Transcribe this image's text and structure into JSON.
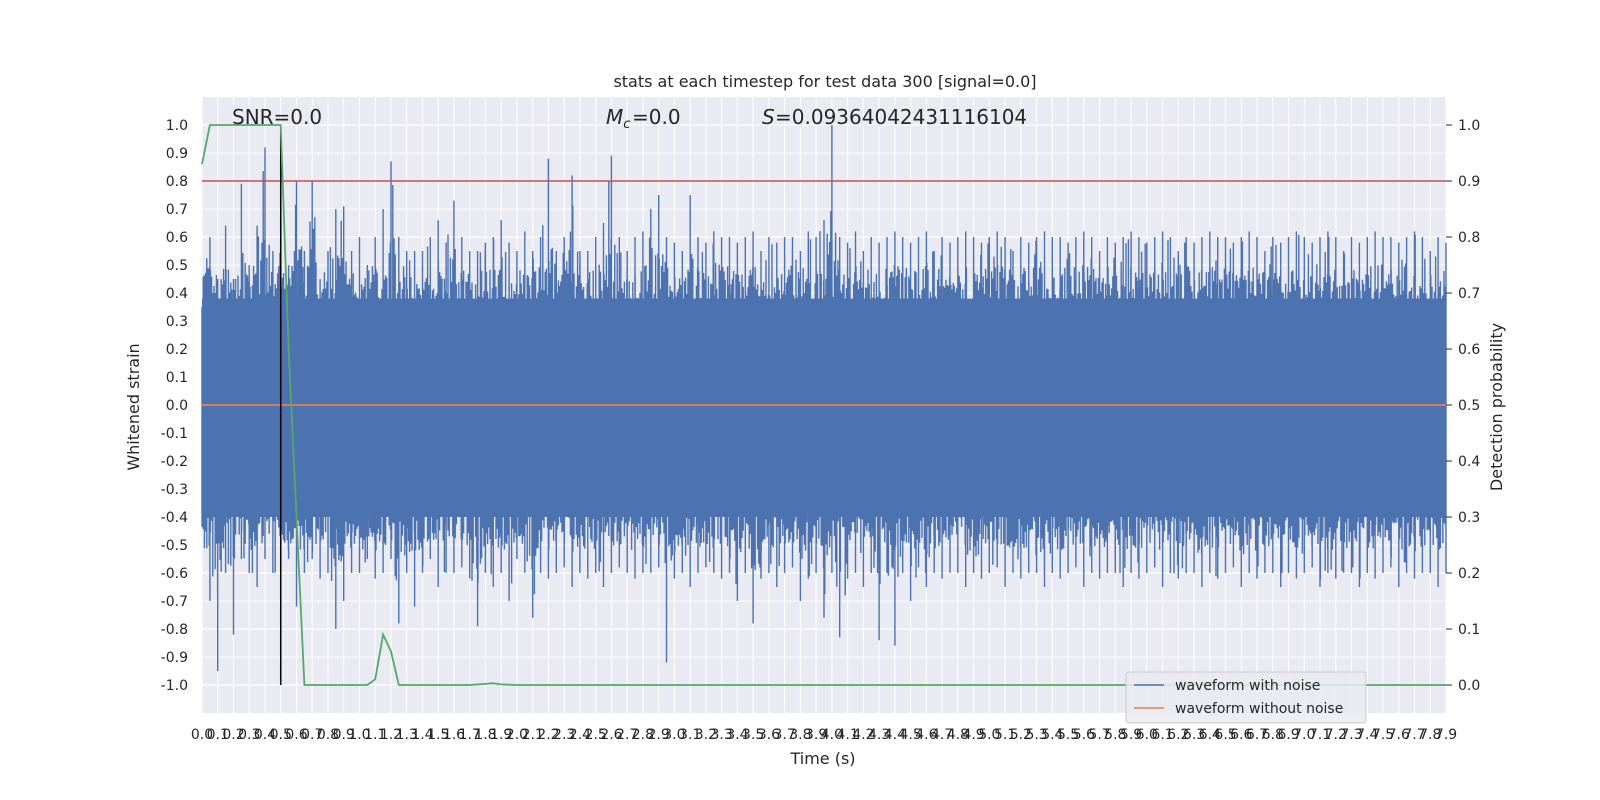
{
  "chart_data": {
    "type": "line",
    "title": "stats at each timestep for test data 300 [signal=0.0]",
    "xlabel": "Time (s)",
    "ylabel": "Whitened strain",
    "ylabel_right": "Detection probability",
    "xlim": [
      0.0,
      7.9
    ],
    "ylim": [
      -1.1,
      1.1
    ],
    "ylim_right": [
      -0.05,
      1.05
    ],
    "grid": true,
    "x_ticks": [
      "0.0",
      "0.1",
      "0.2",
      "0.3",
      "0.4",
      "0.5",
      "0.6",
      "0.7",
      "0.8",
      "0.9",
      "1.0",
      "1.1",
      "1.2",
      "1.3",
      "1.4",
      "1.5",
      "1.6",
      "1.7",
      "1.8",
      "1.9",
      "2.0",
      "2.1",
      "2.2",
      "2.3",
      "2.4",
      "2.5",
      "2.6",
      "2.7",
      "2.8",
      "2.9",
      "3.0",
      "3.1",
      "3.2",
      "3.3",
      "3.4",
      "3.5",
      "3.6",
      "3.7",
      "3.8",
      "3.9",
      "4.0",
      "4.1",
      "4.2",
      "4.3",
      "4.4",
      "4.5",
      "4.6",
      "4.7",
      "4.8",
      "4.9",
      "5.0",
      "5.1",
      "5.2",
      "5.3",
      "5.4",
      "5.5",
      "5.6",
      "5.7",
      "5.8",
      "5.9",
      "6.0",
      "6.1",
      "6.2",
      "6.3",
      "6.4",
      "6.5",
      "6.6",
      "6.7",
      "6.8",
      "6.9",
      "7.0",
      "7.1",
      "7.2",
      "7.3",
      "7.4",
      "7.5",
      "7.6",
      "7.7",
      "7.8",
      "7.9"
    ],
    "y_ticks": [
      "1.0",
      "0.9",
      "0.8",
      "0.7",
      "0.6",
      "0.5",
      "0.4",
      "0.3",
      "0.2",
      "0.1",
      "0.0",
      "-0.1",
      "-0.2",
      "-0.3",
      "-0.4",
      "-0.5",
      "-0.6",
      "-0.7",
      "-0.8",
      "-0.9",
      "-1.0"
    ],
    "y_ticks_right": [
      "1.0",
      "0.9",
      "0.8",
      "0.7",
      "0.6",
      "0.5",
      "0.4",
      "0.3",
      "0.2",
      "0.1",
      "0.0"
    ],
    "annotations": {
      "snr": "SNR=0.0",
      "mc": "=0.0",
      "s": "=0.09364042431116104"
    },
    "legend": {
      "placement": "lower-right",
      "entries": [
        "waveform with noise",
        "waveform without noise"
      ]
    },
    "colors": {
      "noise": "#4c72b0",
      "clean": "#dd8452",
      "probability": "#55a868",
      "threshold": "#c44e52",
      "marker": "#000000",
      "background": "#eaeaf2"
    },
    "threshold_right": 0.9,
    "marker_x": 0.5,
    "series": [
      {
        "name": "waveform with noise",
        "axis": "left",
        "x": [
          0.05,
          0.1,
          0.15,
          0.2,
          0.25,
          0.3,
          0.35,
          0.4,
          0.45,
          0.5,
          0.55,
          0.6,
          0.65,
          0.7,
          0.75,
          0.8,
          0.85,
          0.9,
          0.95,
          1.0,
          1.05,
          1.1,
          1.15,
          1.2,
          1.25,
          1.3,
          1.35,
          1.4,
          1.45,
          1.5,
          1.55,
          1.6,
          1.65,
          1.7,
          1.75,
          1.8,
          1.85,
          1.9,
          1.95,
          2.0,
          2.05,
          2.1,
          2.15,
          2.2,
          2.25,
          2.3,
          2.35,
          2.4,
          2.45,
          2.5,
          2.55,
          2.6,
          2.65,
          2.7,
          2.75,
          2.8,
          2.85,
          2.9,
          2.95,
          3.0,
          3.05,
          3.1,
          3.15,
          3.2,
          3.25,
          3.3,
          3.35,
          3.4,
          3.45,
          3.5,
          3.55,
          3.6,
          3.65,
          3.7,
          3.75,
          3.8,
          3.85,
          3.9,
          3.95,
          4.0,
          4.05,
          4.1,
          4.15,
          4.2,
          4.25,
          4.3,
          4.35,
          4.4,
          4.45,
          4.5,
          4.55,
          4.6,
          4.65,
          4.7,
          4.75,
          4.8,
          4.85,
          4.9,
          4.95,
          5.0,
          5.05,
          5.1,
          5.15,
          5.2,
          5.25,
          5.3,
          5.35,
          5.4,
          5.45,
          5.5,
          5.55,
          5.6,
          5.65,
          5.7,
          5.75,
          5.8,
          5.85,
          5.9,
          5.95,
          6.0,
          6.05,
          6.1,
          6.15,
          6.2,
          6.25,
          6.3,
          6.35,
          6.4,
          6.45,
          6.5,
          6.55,
          6.6,
          6.65,
          6.7,
          6.75,
          6.8,
          6.85,
          6.9,
          6.95,
          7.0,
          7.05,
          7.1,
          7.15,
          7.2,
          7.25,
          7.3,
          7.35,
          7.4,
          7.45,
          7.5,
          7.55,
          7.6,
          7.65,
          7.7,
          7.75,
          7.8,
          7.85,
          7.9
        ],
        "max": [
          0.6,
          0.45,
          0.64,
          0.45,
          0.79,
          0.5,
          0.64,
          0.92,
          0.55,
          0.7,
          0.5,
          0.8,
          0.55,
          0.8,
          0.45,
          0.55,
          0.7,
          0.71,
          0.55,
          0.6,
          0.5,
          0.6,
          0.7,
          0.87,
          0.6,
          0.55,
          0.55,
          0.55,
          0.6,
          0.66,
          0.58,
          0.73,
          0.6,
          0.55,
          0.55,
          0.58,
          0.6,
          0.66,
          0.58,
          0.55,
          0.62,
          0.55,
          0.6,
          0.88,
          0.55,
          0.6,
          0.82,
          0.55,
          0.55,
          0.6,
          0.65,
          0.89,
          0.6,
          0.55,
          0.6,
          0.62,
          0.7,
          0.75,
          0.6,
          0.58,
          0.55,
          0.75,
          0.6,
          0.58,
          0.62,
          0.6,
          0.6,
          0.58,
          0.6,
          0.62,
          0.55,
          0.6,
          0.58,
          0.6,
          0.6,
          0.55,
          0.62,
          0.6,
          0.66,
          1.0,
          0.6,
          0.58,
          0.62,
          0.55,
          0.6,
          0.58,
          0.6,
          0.62,
          0.6,
          0.58,
          0.6,
          0.62,
          0.55,
          0.6,
          0.58,
          0.6,
          0.62,
          0.6,
          0.58,
          0.6,
          0.62,
          0.6,
          0.55,
          0.6,
          0.58,
          0.6,
          0.62,
          0.6,
          0.6,
          0.58,
          0.6,
          0.62,
          0.6,
          0.55,
          0.6,
          0.58,
          0.6,
          0.62,
          0.6,
          0.58,
          0.6,
          0.62,
          0.6,
          0.55,
          0.6,
          0.58,
          0.6,
          0.62,
          0.6,
          0.6,
          0.58,
          0.6,
          0.62,
          0.6,
          0.55,
          0.6,
          0.58,
          0.6,
          0.62,
          0.6,
          0.58,
          0.6,
          0.62,
          0.6,
          0.55,
          0.6,
          0.58,
          0.6,
          0.62,
          0.6,
          0.6,
          0.58,
          0.6,
          0.62,
          0.6,
          0.55,
          0.6,
          0.58
        ],
        "min": [
          -0.7,
          -0.95,
          -0.6,
          -0.82,
          -0.55,
          -0.6,
          -0.65,
          -0.55,
          -0.6,
          -0.6,
          -0.55,
          -0.72,
          -0.6,
          -0.55,
          -0.62,
          -0.6,
          -0.8,
          -0.7,
          -0.6,
          -0.6,
          -0.55,
          -0.62,
          -0.6,
          -0.55,
          -0.78,
          -0.6,
          -0.72,
          -0.6,
          -0.55,
          -0.65,
          -0.6,
          -0.6,
          -0.58,
          -0.62,
          -0.79,
          -0.6,
          -0.65,
          -0.6,
          -0.7,
          -0.55,
          -0.6,
          -0.76,
          -0.6,
          -0.62,
          -0.6,
          -0.58,
          -0.65,
          -0.6,
          -0.62,
          -0.6,
          -0.65,
          -0.6,
          -0.58,
          -0.6,
          -0.62,
          -0.6,
          -0.6,
          -0.58,
          -0.92,
          -0.62,
          -0.6,
          -0.65,
          -0.6,
          -0.58,
          -0.6,
          -0.62,
          -0.6,
          -0.7,
          -0.6,
          -0.78,
          -0.62,
          -0.6,
          -0.65,
          -0.6,
          -0.58,
          -0.7,
          -0.62,
          -0.6,
          -0.76,
          -0.6,
          -0.83,
          -0.62,
          -0.6,
          -0.65,
          -0.6,
          -0.84,
          -0.6,
          -0.86,
          -0.6,
          -0.7,
          -0.58,
          -0.65,
          -0.6,
          -0.62,
          -0.6,
          -0.6,
          -0.65,
          -0.6,
          -0.62,
          -0.6,
          -0.58,
          -0.65,
          -0.6,
          -0.62,
          -0.6,
          -0.6,
          -0.65,
          -0.6,
          -0.62,
          -0.6,
          -0.58,
          -0.65,
          -0.6,
          -0.62,
          -0.6,
          -0.6,
          -0.65,
          -0.6,
          -0.62,
          -0.6,
          -0.58,
          -0.65,
          -0.6,
          -0.62,
          -0.6,
          -0.6,
          -0.65,
          -0.6,
          -0.62,
          -0.6,
          -0.58,
          -0.65,
          -0.6,
          -0.62,
          -0.6,
          -0.6,
          -0.65,
          -0.6,
          -0.62,
          -0.6,
          -0.58,
          -0.65,
          -0.6,
          -0.62,
          -0.6,
          -0.6,
          -0.65,
          -0.6,
          -0.62,
          -0.6,
          -0.58,
          -0.65,
          -0.6,
          -0.62,
          -0.6,
          -0.6,
          -0.65,
          -0.6
        ]
      },
      {
        "name": "waveform without noise",
        "axis": "left",
        "x": [
          0.0,
          7.9
        ],
        "y": [
          0.0,
          0.0
        ]
      },
      {
        "axis": "right",
        "x": [
          0.0,
          0.05,
          0.1,
          0.15,
          0.2,
          0.3,
          0.4,
          0.45,
          0.5,
          0.55,
          0.6,
          0.65,
          0.7,
          0.8,
          0.9,
          1.0,
          1.05,
          1.1,
          1.15,
          1.2,
          1.25,
          1.3,
          1.4,
          1.5,
          1.6,
          1.7,
          1.8,
          1.85,
          1.9,
          2.0,
          3.0,
          4.0,
          5.0,
          6.0,
          7.0,
          7.9
        ],
        "y": [
          0.93,
          1.0,
          1.0,
          1.0,
          1.0,
          1.0,
          1.0,
          1.0,
          1.0,
          0.6,
          0.3,
          0.0,
          0.0,
          0.0,
          0.0,
          0.0,
          0.0,
          0.01,
          0.09,
          0.06,
          0.0,
          0.0,
          0.0,
          0.0,
          0.0,
          0.0,
          0.002,
          0.003,
          0.001,
          0.0,
          0.0,
          0.0,
          0.0,
          0.0,
          0.0,
          0.0
        ]
      }
    ]
  }
}
